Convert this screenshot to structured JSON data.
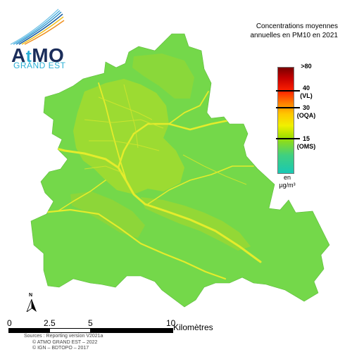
{
  "logo": {
    "name_a": "A",
    "name_t": "t",
    "name_mo": "MO",
    "subtitle": "GRAND EST"
  },
  "title_line1": "Concentrations moyennes",
  "title_line2": "annuelles en PM10 en 2021",
  "legend": {
    "labels": [
      {
        "value": ">80",
        "tag": ""
      },
      {
        "value": "40",
        "tag": "(VL)"
      },
      {
        "value": "30",
        "tag": "(OQA)"
      },
      {
        "value": "15",
        "tag": "(OMS)"
      }
    ],
    "unit_line1": "en",
    "unit_line2": "µg/m³",
    "colors": [
      "#7a0000",
      "#c40000",
      "#ff2000",
      "#ff7a00",
      "#ffc800",
      "#f0f000",
      "#a0e000",
      "#40d080",
      "#19c8b4"
    ]
  },
  "north_label": "N",
  "scale": {
    "labels": [
      "0",
      "2.5",
      "5",
      "10"
    ],
    "unit": "Kilomètres"
  },
  "sources": [
    "Sources : Reporting version V2021a",
    "© ATMO GRAND EST – 2022",
    "© IGN – BDTOPO – 2017"
  ],
  "map_colors": {
    "base": "#74d84a",
    "urban": "#a9de2e",
    "road": "#e6ee30"
  }
}
